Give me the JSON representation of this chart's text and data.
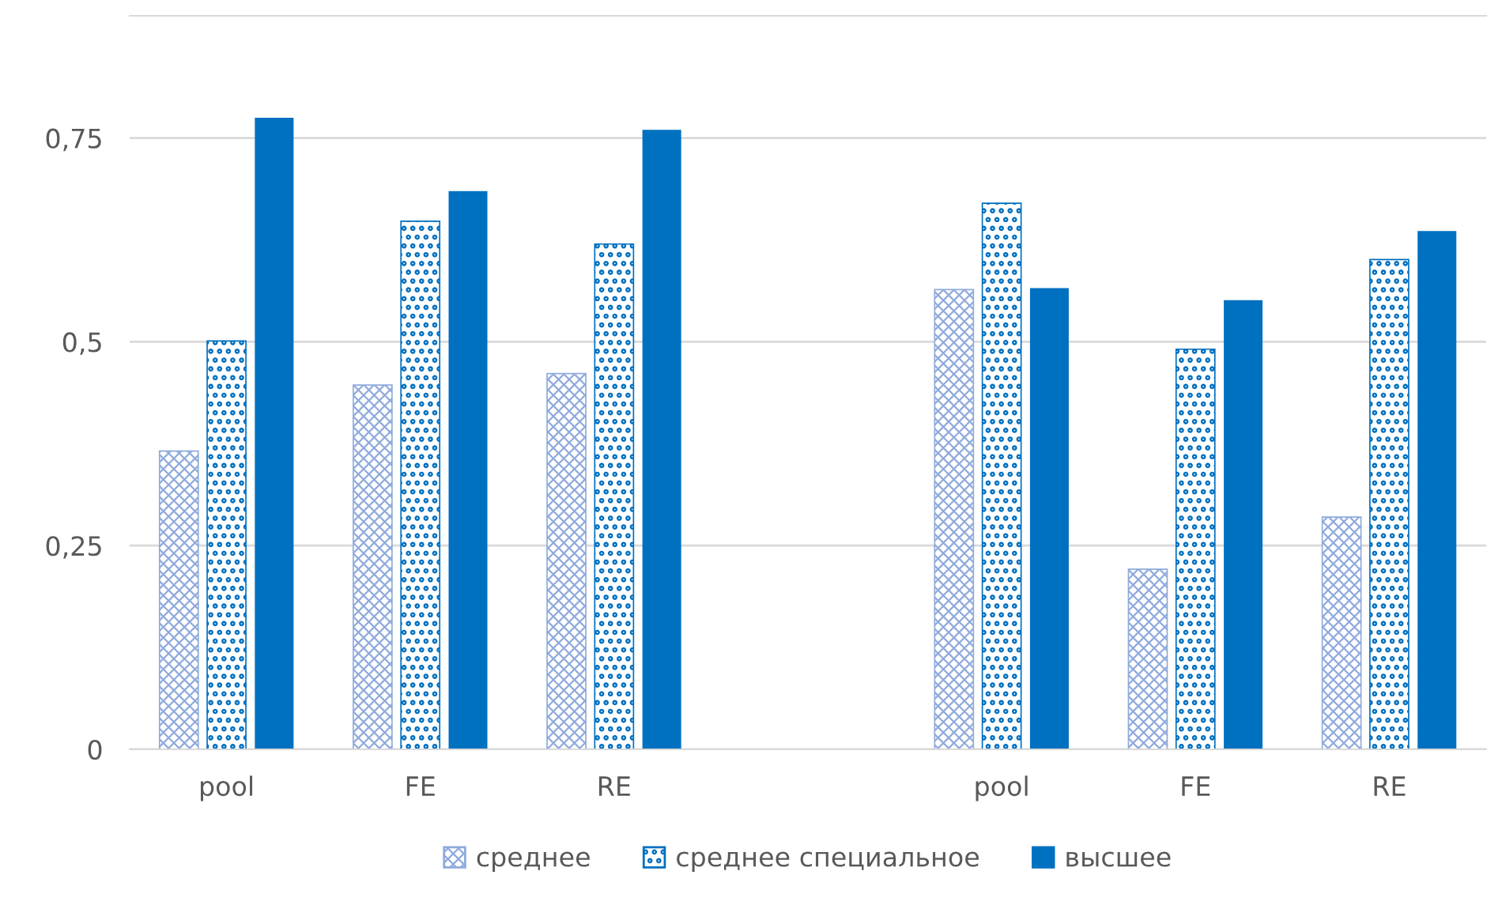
{
  "chart_data": {
    "type": "bar",
    "categories": [
      "pool",
      "FE",
      "RE",
      null,
      "pool",
      "FE",
      "RE"
    ],
    "series": [
      {
        "name": "среднее",
        "color": "#8faadc",
        "values": [
          0.366,
          0.447,
          0.461,
          null,
          0.564,
          0.221,
          0.285
        ]
      },
      {
        "name": "среднее специальное",
        "color": "#0070c0",
        "values": [
          0.501,
          0.648,
          0.62,
          null,
          0.67,
          0.491,
          0.601
        ]
      },
      {
        "name": "высшее",
        "color": "#0070c0",
        "values": [
          0.775,
          0.685,
          0.76,
          null,
          0.566,
          0.551,
          0.636
        ]
      }
    ],
    "ylim": [
      0,
      0.9
    ],
    "yticks": [
      {
        "value": 0,
        "label": "0"
      },
      {
        "value": 0.25,
        "label": "0,25"
      },
      {
        "value": 0.5,
        "label": "0,5"
      },
      {
        "value": 0.75,
        "label": "0,75"
      }
    ],
    "grid": "y",
    "legend": "bottom"
  }
}
